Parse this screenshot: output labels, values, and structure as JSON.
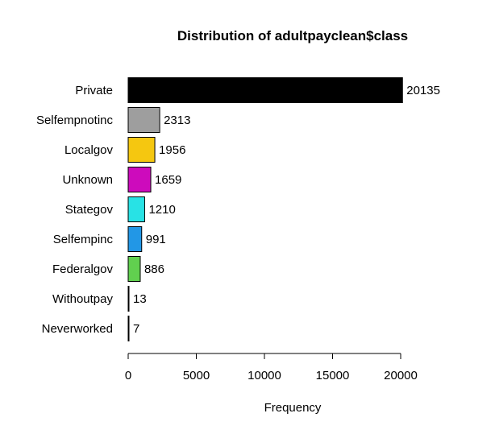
{
  "chart_data": {
    "type": "bar",
    "orientation": "horizontal",
    "title": "Distribution of adultpayclean$class",
    "xlabel": "Frequency",
    "ylabel": "",
    "categories": [
      "Private",
      "Selfempnotinc",
      "Localgov",
      "Unknown",
      "Stategov",
      "Selfempinc",
      "Federalgov",
      "Withoutpay",
      "Neverworked"
    ],
    "values": [
      20135,
      2313,
      1956,
      1659,
      1210,
      991,
      886,
      13,
      7
    ],
    "colors": [
      "#000000",
      "#9e9e9e",
      "#f5c710",
      "#cd0bbc",
      "#28e2e5",
      "#2297e6",
      "#61d04f",
      "#ffffff",
      "#ffffff"
    ],
    "xlim": [
      0,
      20000
    ],
    "xticks": [
      "0",
      "5000",
      "10000",
      "15000",
      "20000"
    ],
    "grid": false,
    "legend": "none"
  }
}
